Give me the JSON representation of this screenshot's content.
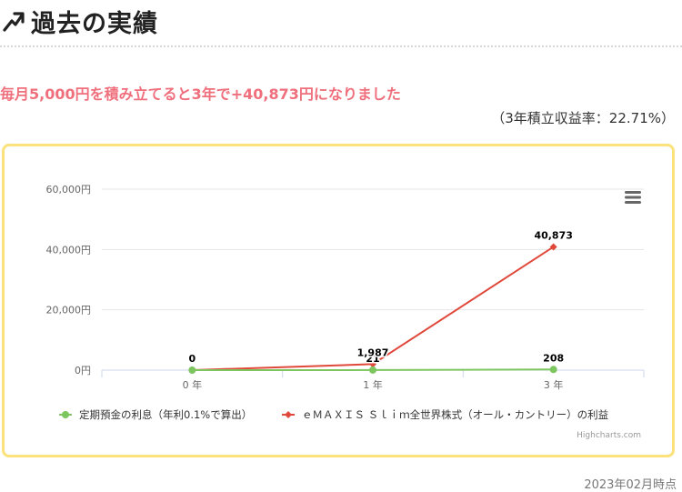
{
  "heading": {
    "icon": "trend-up-arrow-icon",
    "title": "過去の実績"
  },
  "headline": "毎月5,000円を積み立てると3年で+40,873円になりました",
  "rate_note": "（3年積立収益率：22.71%）",
  "chart_menu_icon": "hamburger-menu-icon",
  "credit": "Highcharts.com",
  "as_of": "2023年02月時点",
  "chart_data": {
    "type": "line",
    "categories": [
      "0 年",
      "1 年",
      "3 年"
    ],
    "y_ticks": [
      "0円",
      "20,000円",
      "40,000円",
      "60,000円"
    ],
    "ylim": [
      0,
      60000
    ],
    "grid": true,
    "legend_position": "bottom",
    "series": [
      {
        "name": "定期預金の利息（年利0.1%で算出）",
        "values": [
          0,
          21,
          208
        ],
        "labels": [
          "",
          "21",
          "208"
        ],
        "color": "#7cc55f",
        "marker": "circle"
      },
      {
        "name": "ｅＭＡＸＩＳ Ｓｌｉｍ全世界株式（オール・カントリー）の利益",
        "values": [
          0,
          1987,
          40873
        ],
        "labels": [
          "0",
          "1,987",
          "40,873"
        ],
        "color": "#e0483a",
        "marker": "diamond"
      }
    ]
  }
}
